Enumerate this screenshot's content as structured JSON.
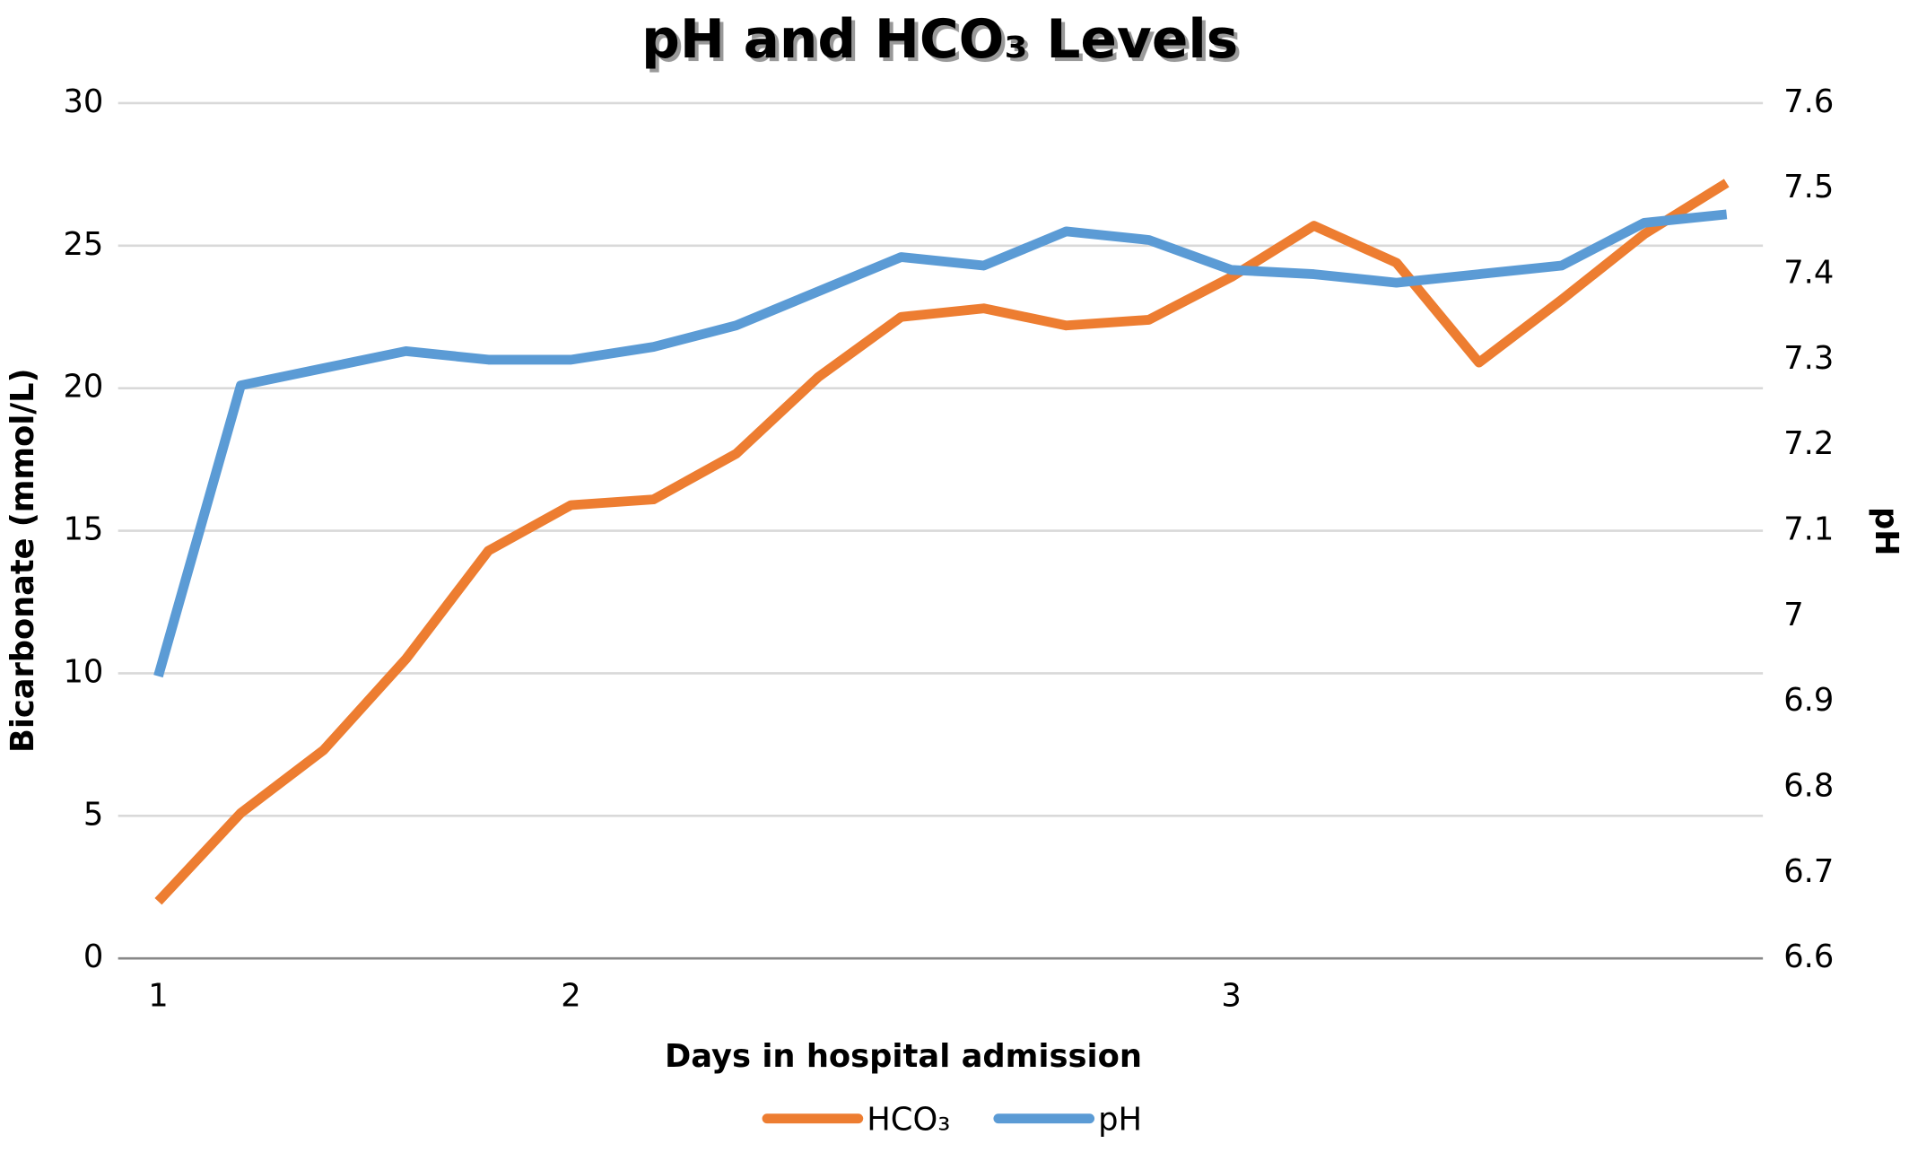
{
  "chart_data": {
    "type": "line",
    "title": "pH and HCO₃ Levels",
    "x_label": "Days in hospital admission",
    "y_label": "Bicarbonate (mmol/L)",
    "y2_label": "pH",
    "categories": [
      "1",
      null,
      null,
      null,
      null,
      "2",
      null,
      null,
      null,
      null,
      null,
      null,
      null,
      "3",
      null,
      null,
      null,
      null,
      null,
      null
    ],
    "series": [
      {
        "name": "HCO₃",
        "color": "#ed7d31",
        "values": [
          2.0,
          5.1,
          7.3,
          10.5,
          14.3,
          15.9,
          16.1,
          17.7,
          20.4,
          22.5,
          22.8,
          22.2,
          22.4,
          23.9,
          25.7,
          24.4,
          20.9,
          23.1,
          25.4,
          27.2
        ]
      },
      {
        "name": "pH",
        "color": "#5b9bd5",
        "axis": "y2",
        "values": [
          6.93,
          7.27,
          7.29,
          7.31,
          7.3,
          7.3,
          7.315,
          7.34,
          7.38,
          7.42,
          7.41,
          7.45,
          7.44,
          7.405,
          7.4,
          7.39,
          7.4,
          7.41,
          7.46,
          7.47
        ]
      }
    ],
    "ylim": [
      0,
      30
    ],
    "yticks": [
      0,
      5,
      10,
      15,
      20,
      25,
      30
    ],
    "y2lim": [
      6.6,
      7.6
    ],
    "y2ticks": [
      6.6,
      6.7,
      6.8,
      6.9,
      7,
      7.1,
      7.2,
      7.3,
      7.4,
      7.5,
      7.6
    ],
    "grid": true,
    "legend": "bottom"
  }
}
